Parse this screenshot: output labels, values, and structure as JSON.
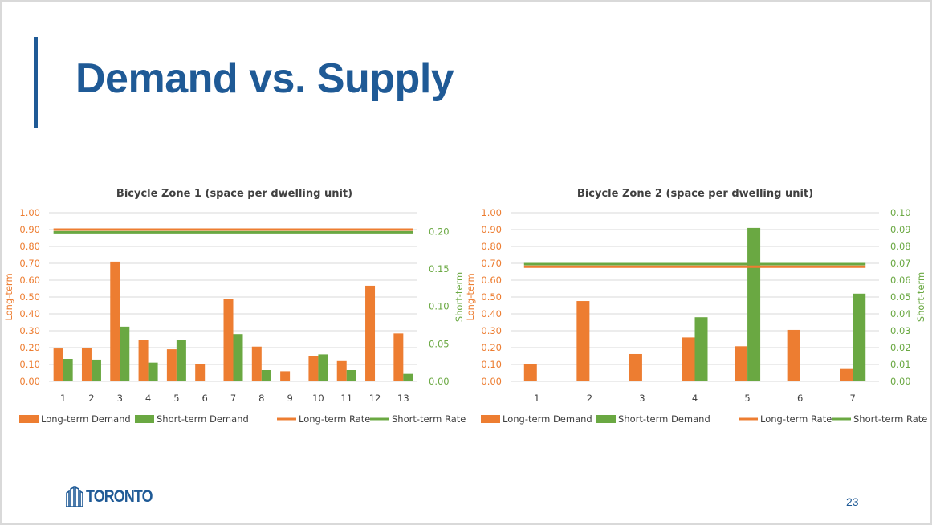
{
  "slide": {
    "title": "Demand vs. Supply",
    "page_number": "23",
    "logo_text": "TORONTO"
  },
  "colors": {
    "long_term": "#ED7D31",
    "short_term": "#6AA842",
    "grid": "#d9d9d9",
    "title": "#1f5a96"
  },
  "chart_data": [
    {
      "type": "bar",
      "title": "Bicycle Zone 1 (space per dwelling unit)",
      "categories": [
        "1",
        "2",
        "3",
        "4",
        "5",
        "6",
        "7",
        "8",
        "9",
        "10",
        "11",
        "12",
        "13"
      ],
      "ylabel": "Long-term",
      "y2label": "Short-term",
      "ylim": [
        0,
        1.0
      ],
      "y2lim": [
        0,
        0.225
      ],
      "yticks": [
        "0.00",
        "0.10",
        "0.20",
        "0.30",
        "0.40",
        "0.50",
        "0.60",
        "0.70",
        "0.80",
        "0.90",
        "1.00"
      ],
      "y2ticks": [
        "0.00",
        "0.05",
        "0.10",
        "0.15",
        "0.20"
      ],
      "grid": true,
      "legend_position": "bottom",
      "series": [
        {
          "name": "Long-term Demand",
          "type": "bar",
          "axis": "left",
          "values": [
            0.195,
            0.2,
            0.71,
            0.243,
            0.19,
            0.103,
            0.49,
            0.206,
            0.06,
            0.151,
            0.12,
            0.567,
            0.284
          ]
        },
        {
          "name": "Short-term Demand",
          "type": "bar",
          "axis": "right",
          "values": [
            0.03,
            0.029,
            0.073,
            0.025,
            0.055,
            0,
            0.063,
            0.015,
            0,
            0.036,
            0.015,
            0,
            0.01
          ]
        },
        {
          "name": "Long-term Rate",
          "type": "line",
          "axis": "left",
          "value": 0.9
        },
        {
          "name": "Short-term Rate",
          "type": "line",
          "axis": "right",
          "value": 0.2
        }
      ]
    },
    {
      "type": "bar",
      "title": "Bicycle Zone 2 (space per dwelling unit)",
      "categories": [
        "1",
        "2",
        "3",
        "4",
        "5",
        "6",
        "7"
      ],
      "ylabel": "Long-term",
      "y2label": "Short-term",
      "ylim": [
        0,
        1.0
      ],
      "y2lim": [
        0,
        0.1
      ],
      "yticks": [
        "0.00",
        "0.10",
        "0.20",
        "0.30",
        "0.40",
        "0.50",
        "0.60",
        "0.70",
        "0.80",
        "0.90",
        "1.00"
      ],
      "y2ticks": [
        "0.00",
        "0.01",
        "0.02",
        "0.03",
        "0.04",
        "0.05",
        "0.06",
        "0.07",
        "0.08",
        "0.09",
        "0.10"
      ],
      "grid": true,
      "legend_position": "bottom",
      "series": [
        {
          "name": "Long-term Demand",
          "type": "bar",
          "axis": "left",
          "values": [
            0.103,
            0.476,
            0.162,
            0.26,
            0.208,
            0.305,
            0.073
          ]
        },
        {
          "name": "Short-term Demand",
          "type": "bar",
          "axis": "right",
          "values": [
            0,
            0,
            0,
            0.038,
            0.091,
            0,
            0.052
          ]
        },
        {
          "name": "Long-term Rate",
          "type": "line",
          "axis": "left",
          "value": 0.68
        },
        {
          "name": "Short-term Rate",
          "type": "line",
          "axis": "right",
          "value": 0.07
        }
      ]
    }
  ]
}
